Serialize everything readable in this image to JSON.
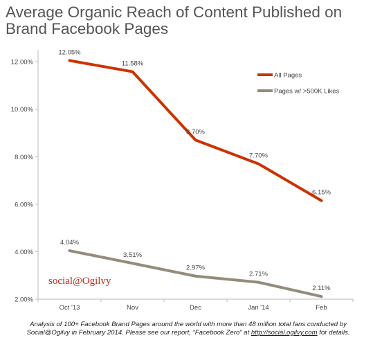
{
  "title_line1": "Average Organic Reach of Content Published on",
  "title_line2": "Brand Facebook Pages",
  "brand": "social@Ogilvy",
  "footnote": {
    "line1": "Analysis of 100+ Facebook Brand Pages around the world with more than 48 million total fans conducted by",
    "line2_prefix": "Social@Ogilvy in February 2014. Please see our report, “Facebook Zero” at ",
    "url": "http://social.ogilvy.com",
    "line2_suffix": " for details."
  },
  "colors": {
    "all_pages": "#cc3300",
    "large_pages": "#958b7b",
    "axis": "#bbbbbb",
    "text": "#444444"
  },
  "chart_data": {
    "type": "line",
    "x": [
      "Oct '13",
      "Nov",
      "Dec",
      "Jan '14",
      "Feb"
    ],
    "ylim": [
      2,
      12.5
    ],
    "yticks": [
      "2.00%",
      "4.00%",
      "6.00%",
      "8.00%",
      "10.00%",
      "12.00%"
    ],
    "ytick_values": [
      2,
      4,
      6,
      8,
      10,
      12
    ],
    "legend_position": "top-right",
    "series": [
      {
        "name": "All Pages",
        "values": [
          12.05,
          11.58,
          8.7,
          7.7,
          6.15
        ],
        "labels": [
          "12.05%",
          "11.58%",
          "8.70%",
          "7.70%",
          "6.15%"
        ]
      },
      {
        "name": "Pages w/ >500K Likes",
        "values": [
          4.04,
          3.51,
          2.97,
          2.71,
          2.11
        ],
        "labels": [
          "4.04%",
          "3.51%",
          "2.97%",
          "2.71%",
          "2.11%"
        ]
      }
    ]
  }
}
